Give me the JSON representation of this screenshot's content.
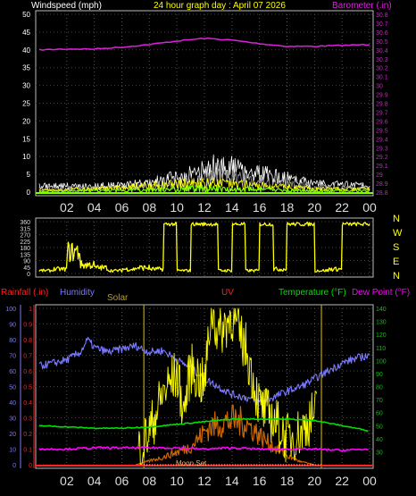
{
  "header": {
    "wind_label": "Windspeed (mph)",
    "title": "24 hour graph day : April 07 2026",
    "baro_label": "Barometer (.in)"
  },
  "compass": [
    "N",
    "W",
    "S",
    "E",
    "N"
  ],
  "bottom_header": {
    "rain_label": "Rainfall (.in)",
    "humidity_label": "Humidity",
    "solar_label": "Solar",
    "uv_label": "UV",
    "temp_label": "Temperature (°F)",
    "dew_label": "Dew Point (°F)"
  },
  "moon_label": "Moon Set",
  "colors": {
    "wind": "#ffffff",
    "gust": "#9a9a9a",
    "baro": "#e01ee0",
    "dir": "#ffff00",
    "rain": "#ff2020",
    "humidity": "#7a7aff",
    "solar": "#bfa000",
    "uv": "#ff2020",
    "temp": "#00e000",
    "dew": "#ff00ff",
    "baro_axis": "#cc22cc",
    "temp_axis": "#00cc00",
    "hours": "#dddddd",
    "lime": "#7fff00"
  },
  "chart_data": [
    {
      "type": "line",
      "title": "24 hour graph day : April 07 2026",
      "xlabel": "",
      "x_ticks": [
        "02",
        "04",
        "06",
        "08",
        "10",
        "12",
        "14",
        "16",
        "18",
        "20",
        "22",
        "00"
      ],
      "y_left": {
        "label": "Windspeed (mph)",
        "range": [
          0,
          50
        ],
        "ticks": [
          0,
          5,
          10,
          15,
          20,
          25,
          30,
          35,
          40,
          45,
          50
        ]
      },
      "y_right": {
        "label": "Barometer (.in)",
        "range": [
          28.8,
          30.8
        ],
        "ticks": [
          "28.8",
          "28.9",
          "29",
          "29.1",
          "29.2",
          "29.3",
          "29.4",
          "29.5",
          "29.6",
          "29.7",
          "29.8",
          "29.9",
          "30",
          "30.1",
          "30.2",
          "30.3",
          "30.4",
          "30.5",
          "30.6",
          "30.7",
          "30.8"
        ]
      },
      "series": [
        {
          "name": "Barometer (.in)",
          "axis": "right",
          "x": [
            0,
            2,
            4,
            6,
            8,
            10,
            12,
            14,
            16,
            18,
            20,
            22,
            24
          ],
          "values": [
            30.4,
            30.41,
            30.41,
            30.43,
            30.46,
            30.5,
            30.53,
            30.51,
            30.47,
            30.44,
            30.44,
            30.45,
            30.46
          ]
        },
        {
          "axis": "left",
          "x": [
            0,
            4,
            8,
            10,
            12,
            13,
            16,
            20,
            24
          ],
          "values": [
            2,
            2,
            3,
            5,
            7,
            9,
            6,
            3,
            2
          ]
        },
        {
          "axis": "left",
          "x": [
            0,
            4,
            8,
            12,
            16,
            20,
            24
          ],
          "values": [
            0.5,
            1,
            2,
            3,
            2,
            1,
            1
          ]
        }
      ]
    },
    {
      "type": "line",
      "y_ticks": [
        0,
        45,
        90,
        135,
        180,
        225,
        270,
        315,
        360
      ],
      "y_left": {
        "range": [
          0,
          360
        ],
        "ticks": [
          0,
          45,
          90,
          135,
          180,
          225,
          270,
          315,
          360
        ]
      },
      "y_right": {
        "labels": [
          "N",
          "W",
          "S",
          "E",
          "N"
        ]
      },
      "series": [
        {
          "x": [
            0,
            1,
            2,
            3,
            4,
            5,
            6,
            7,
            8,
            9,
            10,
            11,
            12,
            13,
            14,
            15,
            16,
            17,
            18,
            19,
            20,
            21,
            22,
            23,
            24
          ],
          "values": [
            20,
            30,
            150,
            60,
            40,
            20,
            30,
            40,
            30,
            345,
            20,
            345,
            345,
            20,
            345,
            20,
            345,
            30,
            345,
            345,
            20,
            30,
            345,
            345,
            20
          ]
        }
      ]
    },
    {
      "type": "line",
      "y_left_rain": {
        "label": "Rainfall (.in)",
        "range": [
          0,
          1
        ],
        "ticks": [
          "0",
          "0.1",
          "0.2",
          "0.3",
          "0.4",
          "0.5",
          "0.6",
          "0.7",
          "0.8",
          "0.9",
          "1"
        ]
      },
      "y_left_humidity": {
        "label": "Humidity",
        "range": [
          0,
          100
        ],
        "ticks": [
          0,
          10,
          20,
          30,
          40,
          50,
          60,
          70,
          80,
          90,
          100
        ]
      },
      "y_right": {
        "label": "Temperature (°F)",
        "range": [
          20,
          140
        ],
        "ticks": [
          30,
          40,
          50,
          60,
          70,
          80,
          90,
          100,
          110,
          120,
          130,
          140
        ]
      },
      "series": [
        {
          "name": "Humidity",
          "axis": "humidity",
          "x": [
            0,
            1,
            2,
            3,
            3.5,
            4,
            5,
            6,
            7,
            8,
            9,
            10,
            11,
            12,
            13,
            14,
            15,
            16,
            17,
            18,
            19,
            20,
            21,
            22,
            23,
            24
          ],
          "values": [
            63,
            65,
            67,
            72,
            80,
            75,
            72,
            74,
            76,
            72,
            73,
            67,
            62,
            55,
            50,
            45,
            43,
            40,
            43,
            47,
            50,
            55,
            60,
            65,
            68,
            70
          ]
        },
        {
          "name": "Temperature (°F)",
          "axis": "temp",
          "x": [
            0,
            2,
            4,
            6,
            8,
            10,
            12,
            13,
            14,
            15,
            16,
            18,
            20,
            22,
            24
          ],
          "values": [
            50,
            49,
            48,
            48,
            49,
            51,
            53,
            54,
            55,
            55,
            55,
            55,
            54,
            50,
            46
          ]
        },
        {
          "name": "Dew Point (°F)",
          "axis": "temp",
          "x": [
            0,
            2,
            4,
            6,
            8,
            10,
            12,
            14,
            16,
            18,
            20,
            22,
            24
          ],
          "values": [
            32,
            32,
            33,
            33,
            33,
            33,
            32,
            33,
            32,
            32,
            32,
            31,
            32
          ]
        },
        {
          "name": "UV",
          "axis": "temp",
          "x": [
            7,
            8,
            9,
            10,
            10.5,
            11,
            12,
            12.5,
            13,
            14,
            14.5,
            15,
            16,
            17,
            18,
            19,
            20
          ],
          "values": [
            27,
            45,
            75,
            90,
            60,
            95,
            80,
            140,
            120,
            135,
            120,
            110,
            65,
            55,
            40,
            45,
            60
          ]
        },
        {
          "name": "Solar",
          "axis": "rain",
          "x": [
            7,
            9,
            11,
            12.3,
            14,
            15,
            16,
            17,
            18,
            19,
            20
          ],
          "values": [
            0,
            0.05,
            0.12,
            0.25,
            0.3,
            0.28,
            0.2,
            0.12,
            0.06,
            0.02,
            0
          ]
        },
        {
          "name": "Rainfall (.in)",
          "axis": "rain",
          "x": [
            0,
            24
          ],
          "values": [
            0,
            0
          ]
        }
      ]
    }
  ]
}
